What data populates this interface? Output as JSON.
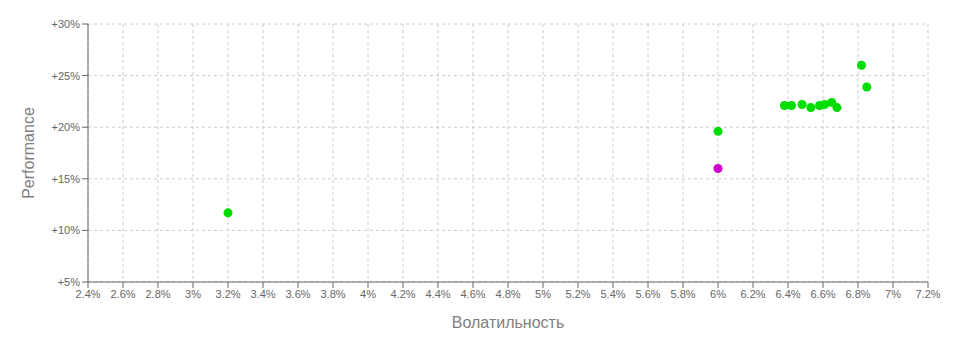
{
  "chart_data": {
    "type": "scatter",
    "xlabel": "Волатильность",
    "ylabel": "Performance",
    "xlim": [
      0.024,
      0.072
    ],
    "ylim": [
      0.05,
      0.3
    ],
    "xticks": [
      {
        "value": 0.024,
        "label": "2.4%"
      },
      {
        "value": 0.026,
        "label": "2.6%"
      },
      {
        "value": 0.028,
        "label": "2.8%"
      },
      {
        "value": 0.03,
        "label": "3%"
      },
      {
        "value": 0.032,
        "label": "3.2%"
      },
      {
        "value": 0.034,
        "label": "3.4%"
      },
      {
        "value": 0.036,
        "label": "3.6%"
      },
      {
        "value": 0.038,
        "label": "3.8%"
      },
      {
        "value": 0.04,
        "label": "4%"
      },
      {
        "value": 0.042,
        "label": "4.2%"
      },
      {
        "value": 0.044,
        "label": "4.4%"
      },
      {
        "value": 0.046,
        "label": "4.6%"
      },
      {
        "value": 0.048,
        "label": "4.8%"
      },
      {
        "value": 0.05,
        "label": "5%"
      },
      {
        "value": 0.052,
        "label": "5.2%"
      },
      {
        "value": 0.054,
        "label": "5.4%"
      },
      {
        "value": 0.056,
        "label": "5.6%"
      },
      {
        "value": 0.058,
        "label": "5.8%"
      },
      {
        "value": 0.06,
        "label": "6%"
      },
      {
        "value": 0.062,
        "label": "6.2%"
      },
      {
        "value": 0.064,
        "label": "6.4%"
      },
      {
        "value": 0.066,
        "label": "6.6%"
      },
      {
        "value": 0.068,
        "label": "6.8%"
      },
      {
        "value": 0.07,
        "label": "7%"
      },
      {
        "value": 0.072,
        "label": "7.2%"
      }
    ],
    "yticks": [
      {
        "value": 0.05,
        "label": "+5%"
      },
      {
        "value": 0.1,
        "label": "+10%"
      },
      {
        "value": 0.15,
        "label": "+15%"
      },
      {
        "value": 0.2,
        "label": "+20%"
      },
      {
        "value": 0.25,
        "label": "+25%"
      },
      {
        "value": 0.3,
        "label": "+30%"
      }
    ],
    "grid": true,
    "series": [
      {
        "color": "#00dd00",
        "x": [
          0.032,
          0.06,
          0.0638,
          0.0642,
          0.0648,
          0.0653,
          0.0658,
          0.0661,
          0.0665,
          0.0668,
          0.0682,
          0.0685
        ],
        "values": [
          0.117,
          0.196,
          0.221,
          0.221,
          0.222,
          0.219,
          0.221,
          0.222,
          0.224,
          0.219,
          0.26,
          0.239
        ]
      },
      {
        "color": "#cc00cc",
        "x": [
          0.06
        ],
        "values": [
          0.16
        ]
      }
    ]
  }
}
